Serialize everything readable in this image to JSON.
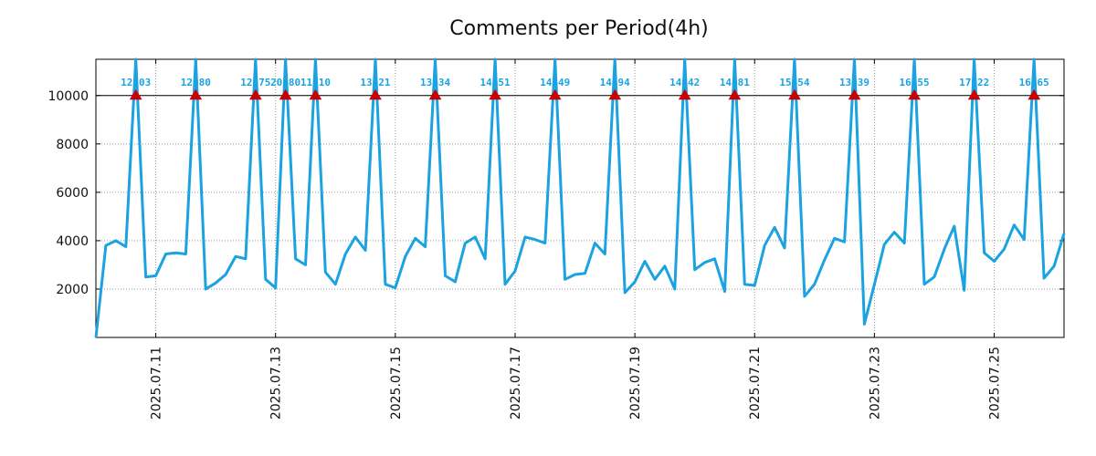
{
  "chart_data": {
    "type": "line",
    "title": "Comments per Period(4h)",
    "xlabel": "",
    "ylabel": "",
    "x_unit": "date",
    "x_start": "2025.07.10",
    "x_step_hours": 4,
    "xlim": [
      "2025.07.10",
      "2025.07.26 04:00"
    ],
    "ylim": [
      0,
      11500
    ],
    "y_ticks": [
      2000,
      4000,
      6000,
      8000,
      10000
    ],
    "y_tick_labels": [
      "2000",
      "4000",
      "6000",
      "8000",
      "10000"
    ],
    "x_tick_labels": [
      "2025.07.11",
      "2025.07.13",
      "2025.07.15",
      "2025.07.17",
      "2025.07.19",
      "2025.07.21",
      "2025.07.23",
      "2025.07.25"
    ],
    "threshold": 10000,
    "grid": true,
    "series": [
      {
        "color": "#1aa3e0",
        "values": [
          0,
          3800,
          4000,
          3750,
          12703,
          2500,
          2550,
          3450,
          3500,
          3450,
          12980,
          2000,
          2250,
          2600,
          3350,
          3250,
          12575,
          2400,
          2050,
          20880,
          3250,
          3000,
          11510,
          2700,
          2200,
          3450,
          4150,
          3600,
          13621,
          2200,
          2050,
          3350,
          4100,
          3750,
          13634,
          2550,
          2300,
          3900,
          4150,
          3250,
          14351,
          2200,
          2750,
          4150,
          4050,
          3900,
          14449,
          2400,
          2600,
          2650,
          3900,
          3450,
          14594,
          1850,
          2300,
          3150,
          2400,
          2950,
          2000,
          14442,
          2800,
          3100,
          3250,
          1900,
          14881,
          2200,
          2150,
          3800,
          4550,
          3700,
          15654,
          1700,
          2200,
          3200,
          4100,
          3950,
          13439,
          550,
          2200,
          3850,
          4350,
          3900,
          16155,
          2200,
          2500,
          3650,
          4600,
          1950,
          17922,
          3500,
          3150,
          3650,
          4650,
          4050,
          16465,
          2450,
          2950,
          4300
        ]
      }
    ],
    "peaks": [
      {
        "label": "12703",
        "value": 12703,
        "index": 4
      },
      {
        "label": "12980",
        "value": 12980,
        "index": 10
      },
      {
        "label": "12575",
        "value": 12575,
        "index": 16
      },
      {
        "label": "20880",
        "value": 20880,
        "index": 19
      },
      {
        "label": "11510",
        "value": 11510,
        "index": 22
      },
      {
        "label": "13621",
        "value": 13621,
        "index": 28
      },
      {
        "label": "13634",
        "value": 13634,
        "index": 34
      },
      {
        "label": "14351",
        "value": 14351,
        "index": 40
      },
      {
        "label": "14449",
        "value": 14449,
        "index": 46
      },
      {
        "label": "14594",
        "value": 14594,
        "index": 52
      },
      {
        "label": "14442",
        "value": 14442,
        "index": 59
      },
      {
        "label": "14881",
        "value": 14881,
        "index": 64
      },
      {
        "label": "15654",
        "value": 15654,
        "index": 70
      },
      {
        "label": "13439",
        "value": 13439,
        "index": 76
      },
      {
        "label": "16155",
        "value": 16155,
        "index": 82
      },
      {
        "label": "17922",
        "value": 17922,
        "index": 88
      },
      {
        "label": "16465",
        "value": 16465,
        "index": 94
      }
    ],
    "peak_marker_color": "#cc0000",
    "line_color": "#1aa3e0"
  }
}
